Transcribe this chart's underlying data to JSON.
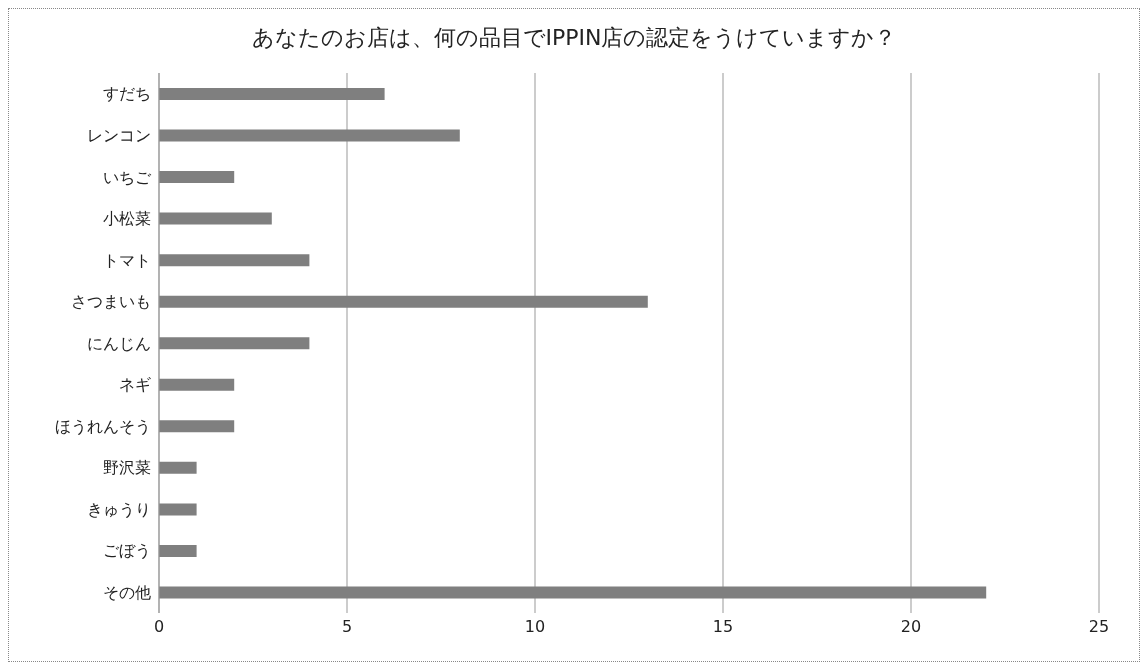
{
  "chart_data": {
    "type": "bar",
    "orientation": "horizontal",
    "title": "あなたのお店は、何の品目でIPPIN店の認定をうけていますか？",
    "categories": [
      "すだち",
      "レンコン",
      "いちご",
      "小松菜",
      "トマト",
      "さつまいも",
      "にんじん",
      "ネギ",
      "ほうれんそう",
      "野沢菜",
      "きゅうり",
      "ごぼう",
      "その他"
    ],
    "values": [
      6,
      8,
      2,
      3,
      4,
      13,
      4,
      2,
      2,
      1,
      1,
      1,
      22
    ],
    "color": "#7f7f7f",
    "xlim": [
      0,
      25
    ],
    "xticks": [
      0,
      5,
      10,
      15,
      20,
      25
    ],
    "grid": "x"
  }
}
